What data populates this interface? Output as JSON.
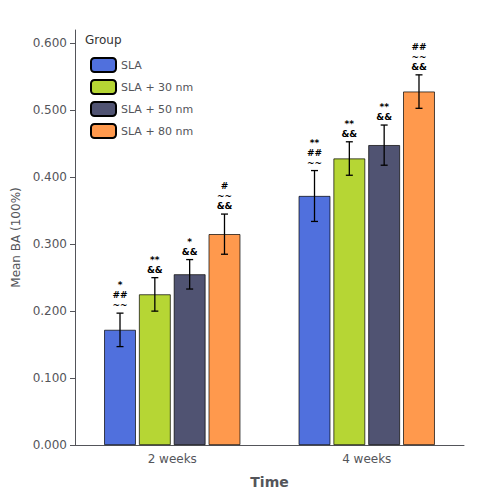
{
  "chart_data": {
    "type": "bar",
    "xlabel": "Time",
    "ylabel": "Mean BA (100%)",
    "categories": [
      "2 weeks",
      "4 weeks"
    ],
    "series": [
      {
        "name": "SLA",
        "values": [
          0.172,
          0.372
        ],
        "errors": [
          0.025,
          0.038
        ],
        "annotations": [
          "*\n##\n~~",
          "**\n##\n~~"
        ]
      },
      {
        "name": "SLA + 30 nm",
        "values": [
          0.225,
          0.428
        ],
        "errors": [
          0.025,
          0.025
        ],
        "annotations": [
          "**\n&&",
          "**\n&&"
        ]
      },
      {
        "name": "SLA + 50 nm",
        "values": [
          0.255,
          0.448
        ],
        "errors": [
          0.022,
          0.03
        ],
        "annotations": [
          "*\n&&",
          "**\n&&"
        ]
      },
      {
        "name": "SLA + 80 nm",
        "values": [
          0.315,
          0.528
        ],
        "errors": [
          0.03,
          0.025
        ],
        "annotations": [
          "#\n~~\n&&",
          "##\n~~\n&&"
        ]
      }
    ],
    "ylim": [
      0.0,
      0.62
    ],
    "yticks": [
      {
        "value": 0.0,
        "label": "0.000"
      },
      {
        "value": 0.1,
        "label": "0.100"
      },
      {
        "value": 0.2,
        "label": "0.200"
      },
      {
        "value": 0.3,
        "label": "0.300"
      },
      {
        "value": 0.4,
        "label": "0.400"
      },
      {
        "value": 0.5,
        "label": "0.500"
      },
      {
        "value": 0.6,
        "label": "0.600"
      }
    ],
    "grid": false,
    "legend": "upper left",
    "legend_title": "Group"
  }
}
